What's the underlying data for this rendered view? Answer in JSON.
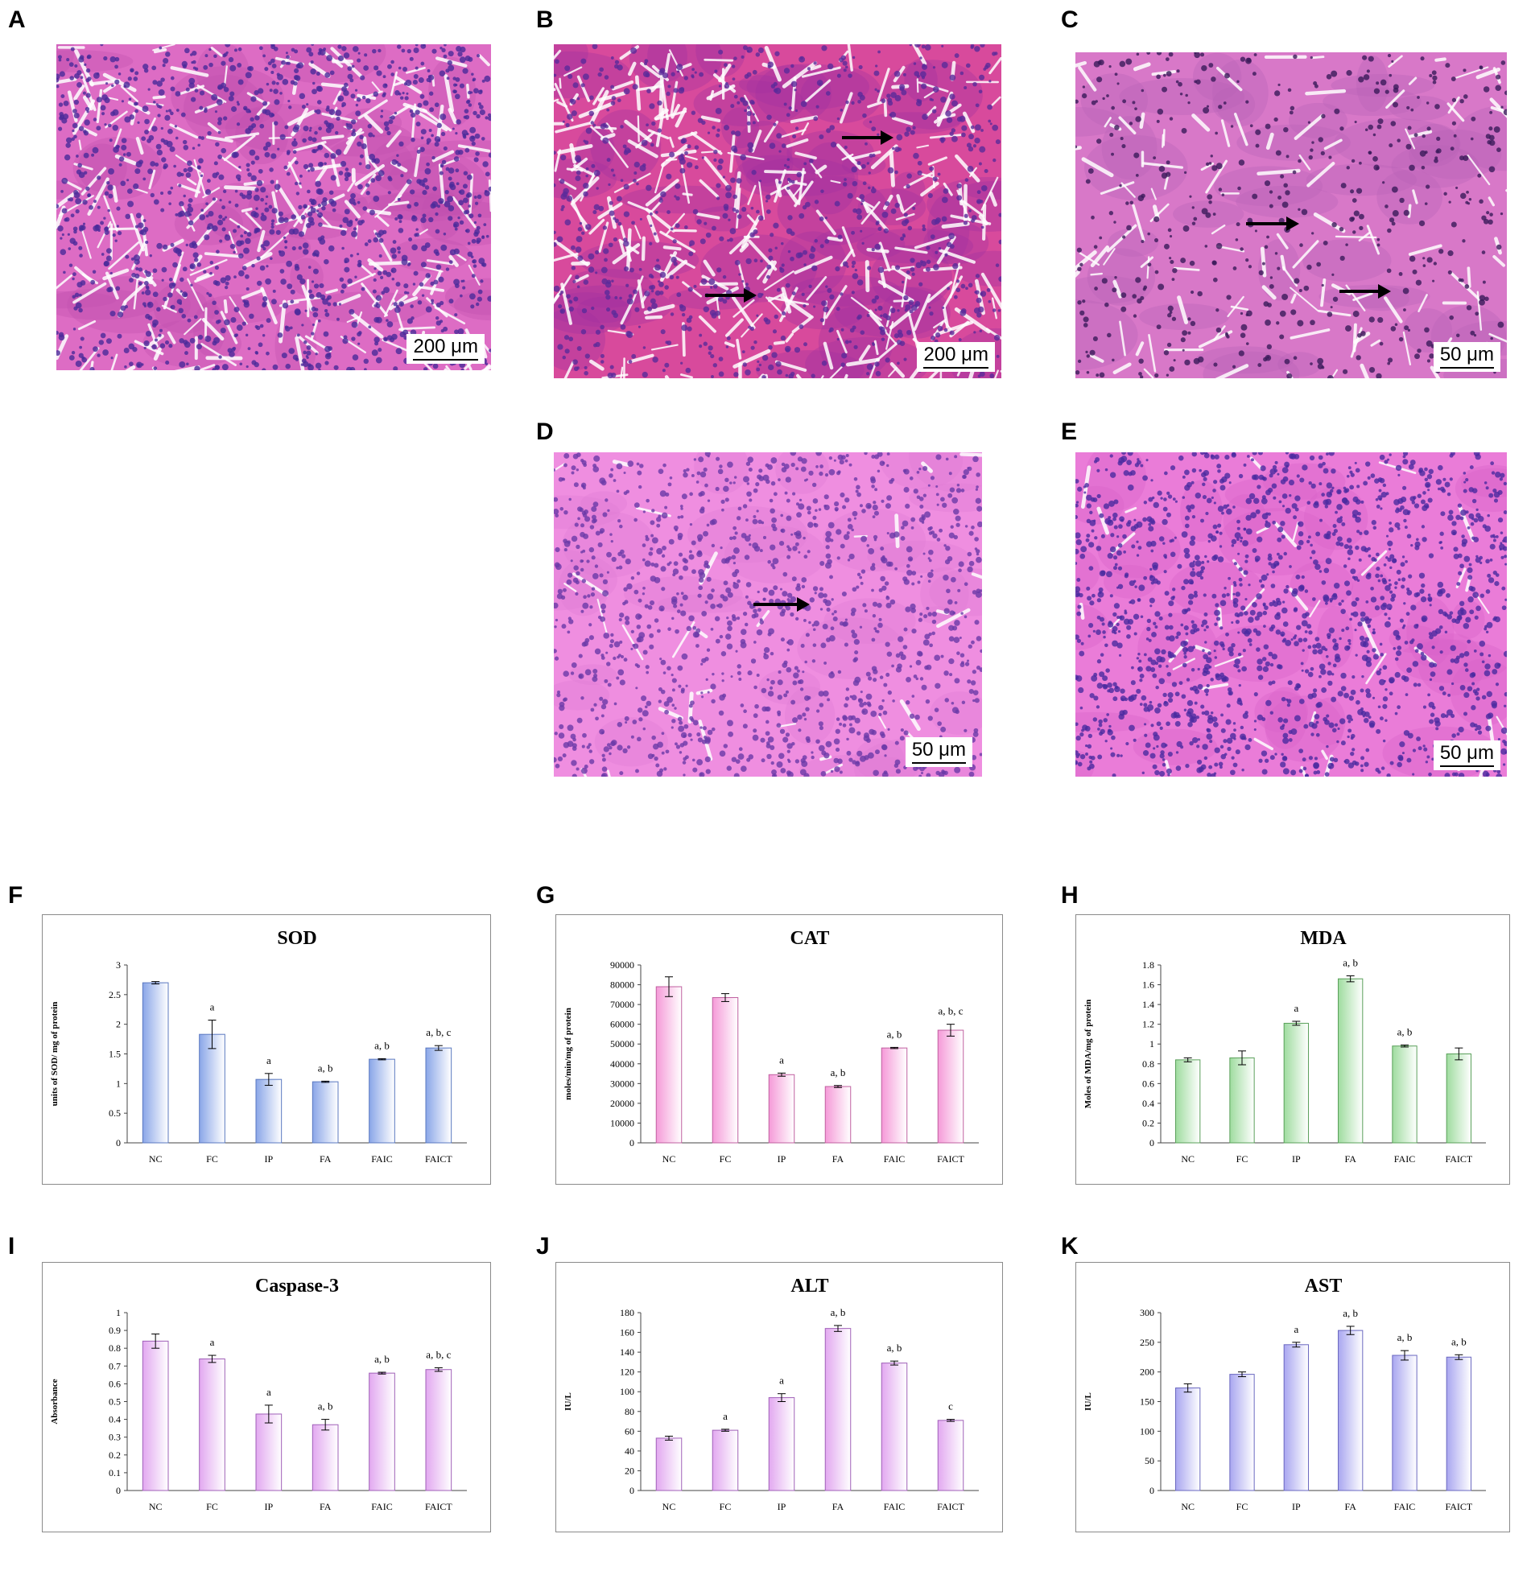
{
  "panels": {
    "a": "A",
    "b": "B",
    "c": "C",
    "d": "D",
    "e": "E",
    "f": "F",
    "g": "G",
    "h": "H",
    "i": "I",
    "j": "J",
    "k": "K"
  },
  "scalebars": {
    "a": "200 μm",
    "b": "200 μm",
    "c": "50 μm",
    "d": "50 μm",
    "e": "50 μm"
  },
  "colors": {
    "tissue_pink": "#e060b8",
    "nuclei_purple": "#5a2aa0",
    "sod_bar": "#8aa6e8",
    "cat_bar": "#f59ad8",
    "mda_bar": "#9fdc9f",
    "casp_bar": "#e2a8f0",
    "alt_bar": "#e2a8f0",
    "ast_bar": "#a9a6f0"
  },
  "chart_data": [
    {
      "id": "sod",
      "type": "bar",
      "title": "SOD",
      "ylabel": "units of SOD/ mg of protein",
      "categories": [
        "NC",
        "FC",
        "IP",
        "FA",
        "FAIC",
        "FAICT"
      ],
      "values": [
        2.7,
        1.83,
        1.07,
        1.03,
        1.41,
        1.6
      ],
      "errors": [
        0.02,
        0.24,
        0.1,
        0.01,
        0.01,
        0.04
      ],
      "annotations": [
        "",
        "a",
        "a",
        "a, b",
        "a, b",
        "a, b, c"
      ],
      "ylim": [
        0,
        3
      ],
      "yticks": [
        0,
        0.5,
        1,
        1.5,
        2,
        2.5,
        3
      ],
      "yticklabels": [
        "0",
        "0.5",
        "1",
        "1.5",
        "2",
        "2.5",
        "3"
      ],
      "color": "#8aa6e8",
      "border": "#5a78c0"
    },
    {
      "id": "cat",
      "type": "bar",
      "title": "CAT",
      "ylabel": "moles/min/mg of protein",
      "categories": [
        "NC",
        "FC",
        "IP",
        "FA",
        "FAIC",
        "FAICT"
      ],
      "values": [
        79000,
        73500,
        34500,
        28500,
        48000,
        57000
      ],
      "errors": [
        5000,
        2000,
        800,
        500,
        300,
        3000
      ],
      "annotations": [
        "",
        "",
        "a",
        "a, b",
        "a, b",
        "a, b, c"
      ],
      "ylim": [
        0,
        90000
      ],
      "yticks": [
        0,
        10000,
        20000,
        30000,
        40000,
        50000,
        60000,
        70000,
        80000,
        90000
      ],
      "yticklabels": [
        "0",
        "10000",
        "20000",
        "30000",
        "40000",
        "50000",
        "60000",
        "70000",
        "80000",
        "90000"
      ],
      "color": "#f59ad8",
      "border": "#c060a0"
    },
    {
      "id": "mda",
      "type": "bar",
      "title": "MDA",
      "ylabel": "Moles of MDA/mg of protein",
      "categories": [
        "NC",
        "FC",
        "IP",
        "FA",
        "FAIC",
        "FAICT"
      ],
      "values": [
        0.84,
        0.86,
        1.21,
        1.66,
        0.98,
        0.9
      ],
      "errors": [
        0.02,
        0.07,
        0.02,
        0.03,
        0.01,
        0.06
      ],
      "annotations": [
        "",
        "",
        "a",
        "a, b",
        "a, b",
        ""
      ],
      "ylim": [
        0,
        1.8
      ],
      "yticks": [
        0,
        0.2,
        0.4,
        0.6,
        0.8,
        1,
        1.2,
        1.4,
        1.6,
        1.8
      ],
      "yticklabels": [
        "0",
        "0.2",
        "0.4",
        "0.6",
        "0.8",
        "1",
        "1.2",
        "1.4",
        "1.6",
        "1.8"
      ],
      "color": "#9fdc9f",
      "border": "#5aa05a"
    },
    {
      "id": "casp",
      "type": "bar",
      "title": "Caspase-3",
      "ylabel": "Absorbance",
      "categories": [
        "NC",
        "FC",
        "IP",
        "FA",
        "FAIC",
        "FAICT"
      ],
      "values": [
        0.84,
        0.74,
        0.43,
        0.37,
        0.66,
        0.68
      ],
      "errors": [
        0.04,
        0.02,
        0.05,
        0.03,
        0.005,
        0.01
      ],
      "annotations": [
        "",
        "a",
        "a",
        "a, b",
        "a, b",
        "a, b, c"
      ],
      "ylim": [
        0,
        1
      ],
      "yticks": [
        0,
        0.1,
        0.2,
        0.3,
        0.4,
        0.5,
        0.6,
        0.7,
        0.8,
        0.9,
        1
      ],
      "yticklabels": [
        "0",
        "0.1",
        "0.2",
        "0.3",
        "0.4",
        "0.5",
        "0.6",
        "0.7",
        "0.8",
        "0.9",
        "1"
      ],
      "color": "#e2a8f0",
      "border": "#a060b8"
    },
    {
      "id": "alt",
      "type": "bar",
      "title": "ALT",
      "ylabel": "IU/L",
      "categories": [
        "NC",
        "FC",
        "IP",
        "FA",
        "FAIC",
        "FAICT"
      ],
      "values": [
        53,
        61,
        94,
        164,
        129,
        71
      ],
      "errors": [
        2,
        1,
        4,
        3,
        2,
        1
      ],
      "annotations": [
        "",
        "a",
        "a",
        "a, b",
        "a, b",
        "c"
      ],
      "ylim": [
        0,
        180
      ],
      "yticks": [
        0,
        20,
        40,
        60,
        80,
        100,
        120,
        140,
        160,
        180
      ],
      "yticklabels": [
        "0",
        "20",
        "40",
        "60",
        "80",
        "100",
        "120",
        "140",
        "160",
        "180"
      ],
      "color": "#e2a8f0",
      "border": "#a060b8"
    },
    {
      "id": "ast",
      "type": "bar",
      "title": "AST",
      "ylabel": "IU/L",
      "categories": [
        "NC",
        "FC",
        "IP",
        "FA",
        "FAIC",
        "FAICT"
      ],
      "values": [
        173,
        196,
        246,
        270,
        228,
        225
      ],
      "errors": [
        7,
        4,
        4,
        7,
        8,
        4
      ],
      "annotations": [
        "",
        "",
        "a",
        "a, b",
        "a, b",
        "a, b"
      ],
      "ylim": [
        0,
        300
      ],
      "yticks": [
        0,
        50,
        100,
        150,
        200,
        250,
        300
      ],
      "yticklabels": [
        "0",
        "50",
        "100",
        "150",
        "200",
        "250",
        "300"
      ],
      "color": "#a9a6f0",
      "border": "#6a68c0"
    }
  ]
}
